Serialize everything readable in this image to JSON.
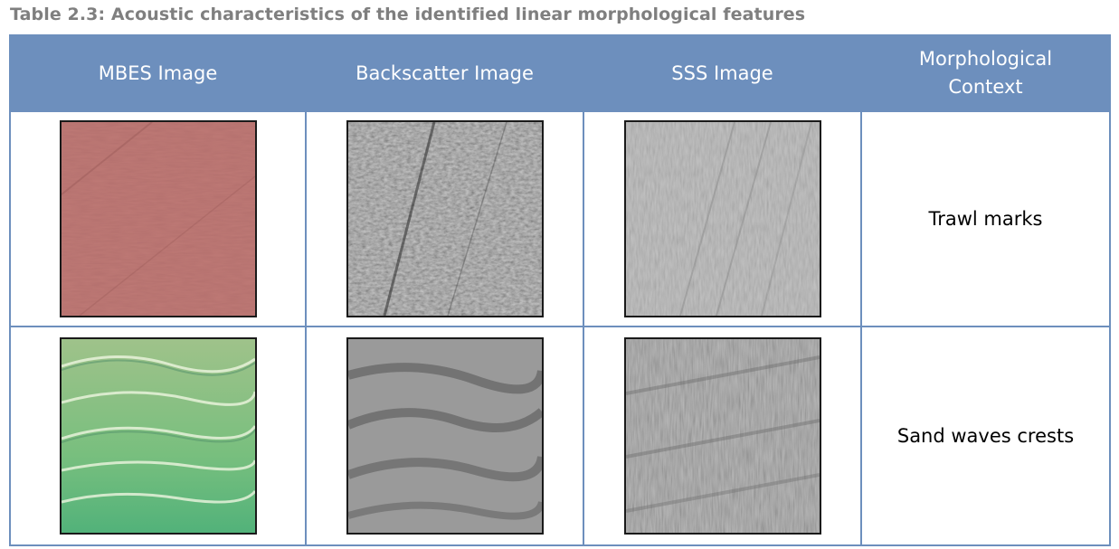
{
  "caption": "Table 2.3: Acoustic characteristics of the identified linear morphological features",
  "columns": [
    "MBES Image",
    "Backscatter Image",
    "SSS Image",
    "Morphological Context"
  ],
  "rows": [
    {
      "context": "Trawl marks",
      "images": [
        "mbes-trawl-marks-image",
        "backscatter-trawl-marks-image",
        "sss-trawl-marks-image"
      ]
    },
    {
      "context": "Sand waves crests",
      "images": [
        "mbes-sand-waves-image",
        "backscatter-sand-waves-image",
        "sss-sand-waves-image"
      ]
    }
  ]
}
